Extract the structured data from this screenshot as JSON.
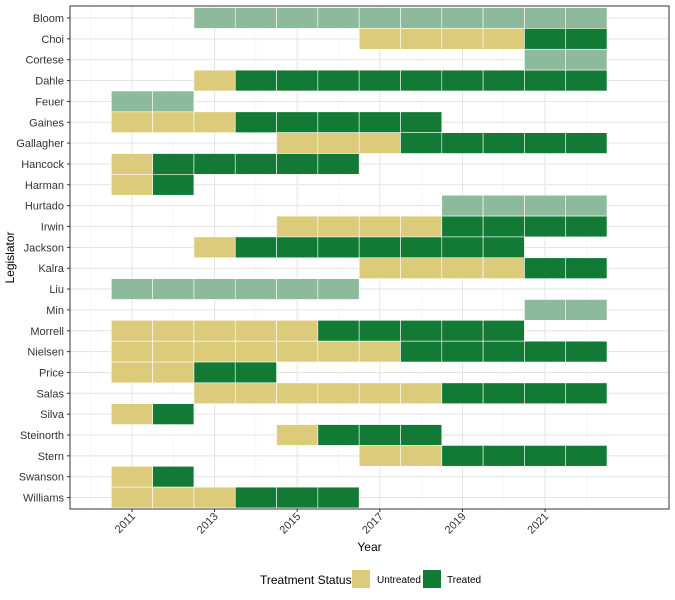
{
  "chart_data": {
    "type": "heatmap",
    "xlabel": "Year",
    "ylabel": "Legislator",
    "xlim": [
      2009.5,
      2024.0
    ],
    "x_ticks": [
      2011,
      2013,
      2015,
      2017,
      2019,
      2021
    ],
    "x_tick_labels": [
      "2011",
      "2013",
      "2015",
      "2017",
      "2019",
      "2021"
    ],
    "grid": true,
    "legend": {
      "title": "Treatment Status",
      "position": "bottom",
      "entries": [
        {
          "key": "untreated",
          "label": "Untreated",
          "color": "#dccb7a"
        },
        {
          "key": "treated",
          "label": "Treated",
          "color": "#137a36"
        }
      ]
    },
    "faded_color": "#8dba9b",
    "cell_border_color": "#ffffff",
    "legislators": [
      {
        "name": "Bloom",
        "cells": [
          {
            "start": 2013,
            "end": 2022,
            "status": "faded"
          }
        ]
      },
      {
        "name": "Choi",
        "cells": [
          {
            "start": 2017,
            "end": 2020,
            "status": "untreated"
          },
          {
            "start": 2021,
            "end": 2022,
            "status": "treated"
          }
        ]
      },
      {
        "name": "Cortese",
        "cells": [
          {
            "start": 2021,
            "end": 2022,
            "status": "faded"
          }
        ]
      },
      {
        "name": "Dahle",
        "cells": [
          {
            "start": 2013,
            "end": 2013,
            "status": "untreated"
          },
          {
            "start": 2014,
            "end": 2022,
            "status": "treated"
          }
        ]
      },
      {
        "name": "Feuer",
        "cells": [
          {
            "start": 2011,
            "end": 2012,
            "status": "faded"
          }
        ]
      },
      {
        "name": "Gaines",
        "cells": [
          {
            "start": 2011,
            "end": 2013,
            "status": "untreated"
          },
          {
            "start": 2014,
            "end": 2018,
            "status": "treated"
          }
        ]
      },
      {
        "name": "Gallagher",
        "cells": [
          {
            "start": 2015,
            "end": 2017,
            "status": "untreated"
          },
          {
            "start": 2018,
            "end": 2022,
            "status": "treated"
          }
        ]
      },
      {
        "name": "Hancock",
        "cells": [
          {
            "start": 2011,
            "end": 2011,
            "status": "untreated"
          },
          {
            "start": 2012,
            "end": 2016,
            "status": "treated"
          }
        ]
      },
      {
        "name": "Harman",
        "cells": [
          {
            "start": 2011,
            "end": 2011,
            "status": "untreated"
          },
          {
            "start": 2012,
            "end": 2012,
            "status": "treated"
          }
        ]
      },
      {
        "name": "Hurtado",
        "cells": [
          {
            "start": 2019,
            "end": 2022,
            "status": "faded"
          }
        ]
      },
      {
        "name": "Irwin",
        "cells": [
          {
            "start": 2015,
            "end": 2018,
            "status": "untreated"
          },
          {
            "start": 2019,
            "end": 2022,
            "status": "treated"
          }
        ]
      },
      {
        "name": "Jackson",
        "cells": [
          {
            "start": 2013,
            "end": 2013,
            "status": "untreated"
          },
          {
            "start": 2014,
            "end": 2020,
            "status": "treated"
          }
        ]
      },
      {
        "name": "Kalra",
        "cells": [
          {
            "start": 2017,
            "end": 2020,
            "status": "untreated"
          },
          {
            "start": 2021,
            "end": 2022,
            "status": "treated"
          }
        ]
      },
      {
        "name": "Liu",
        "cells": [
          {
            "start": 2011,
            "end": 2016,
            "status": "faded"
          }
        ]
      },
      {
        "name": "Min",
        "cells": [
          {
            "start": 2021,
            "end": 2022,
            "status": "faded"
          }
        ]
      },
      {
        "name": "Morrell",
        "cells": [
          {
            "start": 2011,
            "end": 2015,
            "status": "untreated"
          },
          {
            "start": 2016,
            "end": 2020,
            "status": "treated"
          }
        ]
      },
      {
        "name": "Nielsen",
        "cells": [
          {
            "start": 2011,
            "end": 2017,
            "status": "untreated"
          },
          {
            "start": 2018,
            "end": 2022,
            "status": "treated"
          }
        ]
      },
      {
        "name": "Price",
        "cells": [
          {
            "start": 2011,
            "end": 2012,
            "status": "untreated"
          },
          {
            "start": 2013,
            "end": 2014,
            "status": "treated"
          }
        ]
      },
      {
        "name": "Salas",
        "cells": [
          {
            "start": 2013,
            "end": 2018,
            "status": "untreated"
          },
          {
            "start": 2019,
            "end": 2022,
            "status": "treated"
          }
        ]
      },
      {
        "name": "Silva",
        "cells": [
          {
            "start": 2011,
            "end": 2011,
            "status": "untreated"
          },
          {
            "start": 2012,
            "end": 2012,
            "status": "treated"
          }
        ]
      },
      {
        "name": "Steinorth",
        "cells": [
          {
            "start": 2015,
            "end": 2015,
            "status": "untreated"
          },
          {
            "start": 2016,
            "end": 2018,
            "status": "treated"
          }
        ]
      },
      {
        "name": "Stern",
        "cells": [
          {
            "start": 2017,
            "end": 2018,
            "status": "untreated"
          },
          {
            "start": 2019,
            "end": 2022,
            "status": "treated"
          }
        ]
      },
      {
        "name": "Swanson",
        "cells": [
          {
            "start": 2011,
            "end": 2011,
            "status": "untreated"
          },
          {
            "start": 2012,
            "end": 2012,
            "status": "treated"
          }
        ]
      },
      {
        "name": "Williams",
        "cells": [
          {
            "start": 2011,
            "end": 2013,
            "status": "untreated"
          },
          {
            "start": 2014,
            "end": 2016,
            "status": "treated"
          }
        ]
      }
    ]
  }
}
